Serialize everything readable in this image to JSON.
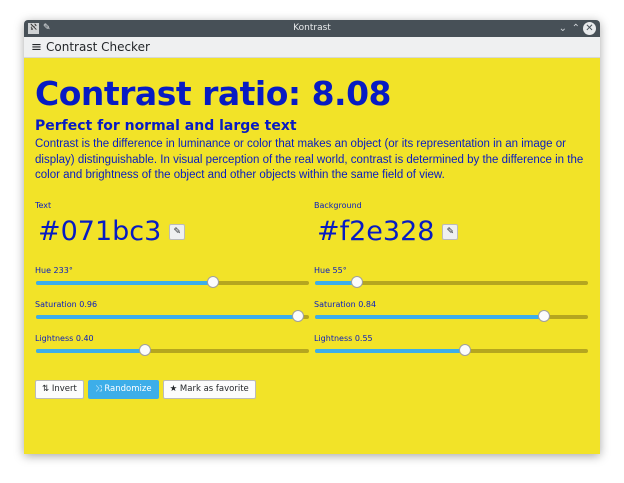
{
  "window": {
    "title": "Kontrast"
  },
  "header": {
    "title": "Contrast Checker"
  },
  "main": {
    "ratio": "Contrast ratio: 8.08",
    "verdict": "Perfect for normal and large text",
    "description": "Contrast is the difference in luminance or color that makes an object (or its representation in an image or display) distinguishable. In visual perception of the real world, contrast is determined by the difference in the color and brightness of the object and other objects within the same field of view.",
    "text": {
      "label": "Text",
      "hex": "#071bc3",
      "hue_label": "Hue 233°",
      "hue": 233,
      "sat_label": "Saturation 0.96",
      "sat": 0.96,
      "light_label": "Lightness 0.40",
      "light": 0.4
    },
    "background": {
      "label": "Background",
      "hex": "#f2e328",
      "hue_label": "Hue 55°",
      "hue": 55,
      "sat_label": "Saturation 0.84",
      "sat": 0.84,
      "light_label": "Lightness 0.55",
      "light": 0.55
    }
  },
  "actions": {
    "invert": "Invert",
    "randomize": "Randomize",
    "favorite": "Mark as favorite"
  },
  "colors": {
    "accent": "#3daee9",
    "text": "#071bc3",
    "background": "#f2e328"
  }
}
